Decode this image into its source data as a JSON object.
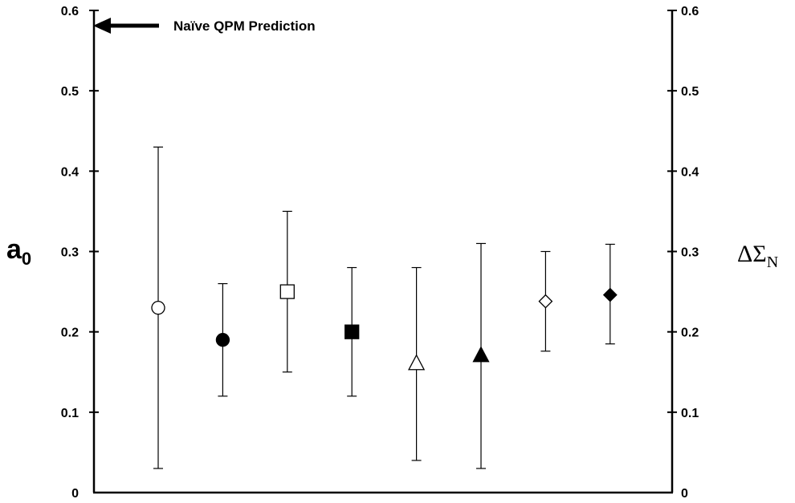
{
  "chart_data": {
    "type": "scatter",
    "title": "",
    "annotation": "Naïve QPM Prediction",
    "annotation_value": 0.58,
    "ylabel_left": {
      "main": "a",
      "sub": "0"
    },
    "ylabel_right": {
      "main": "ΔΣ",
      "sub": "N"
    },
    "ylim": [
      0,
      0.6
    ],
    "yticks": [
      0,
      0.1,
      0.2,
      0.3,
      0.4,
      0.5,
      0.6
    ],
    "ytick_labels": [
      "0",
      "0.1",
      "0.2",
      "0.3",
      "0.4",
      "0.5",
      "0.6"
    ],
    "grid": false,
    "points": [
      {
        "x": 1,
        "y": 0.23,
        "low": 0.03,
        "high": 0.43,
        "marker": "circle",
        "filled": false
      },
      {
        "x": 2,
        "y": 0.19,
        "low": 0.12,
        "high": 0.26,
        "marker": "circle",
        "filled": true
      },
      {
        "x": 3,
        "y": 0.25,
        "low": 0.15,
        "high": 0.35,
        "marker": "square",
        "filled": false
      },
      {
        "x": 4,
        "y": 0.2,
        "low": 0.12,
        "high": 0.28,
        "marker": "square",
        "filled": true
      },
      {
        "x": 5,
        "y": 0.16,
        "low": 0.04,
        "high": 0.28,
        "marker": "triangle",
        "filled": false
      },
      {
        "x": 6,
        "y": 0.17,
        "low": 0.03,
        "high": 0.31,
        "marker": "triangle",
        "filled": true
      },
      {
        "x": 7,
        "y": 0.238,
        "low": 0.176,
        "high": 0.3,
        "marker": "diamond",
        "filled": false
      },
      {
        "x": 8,
        "y": 0.246,
        "low": 0.185,
        "high": 0.309,
        "marker": "diamond",
        "filled": true
      }
    ]
  }
}
